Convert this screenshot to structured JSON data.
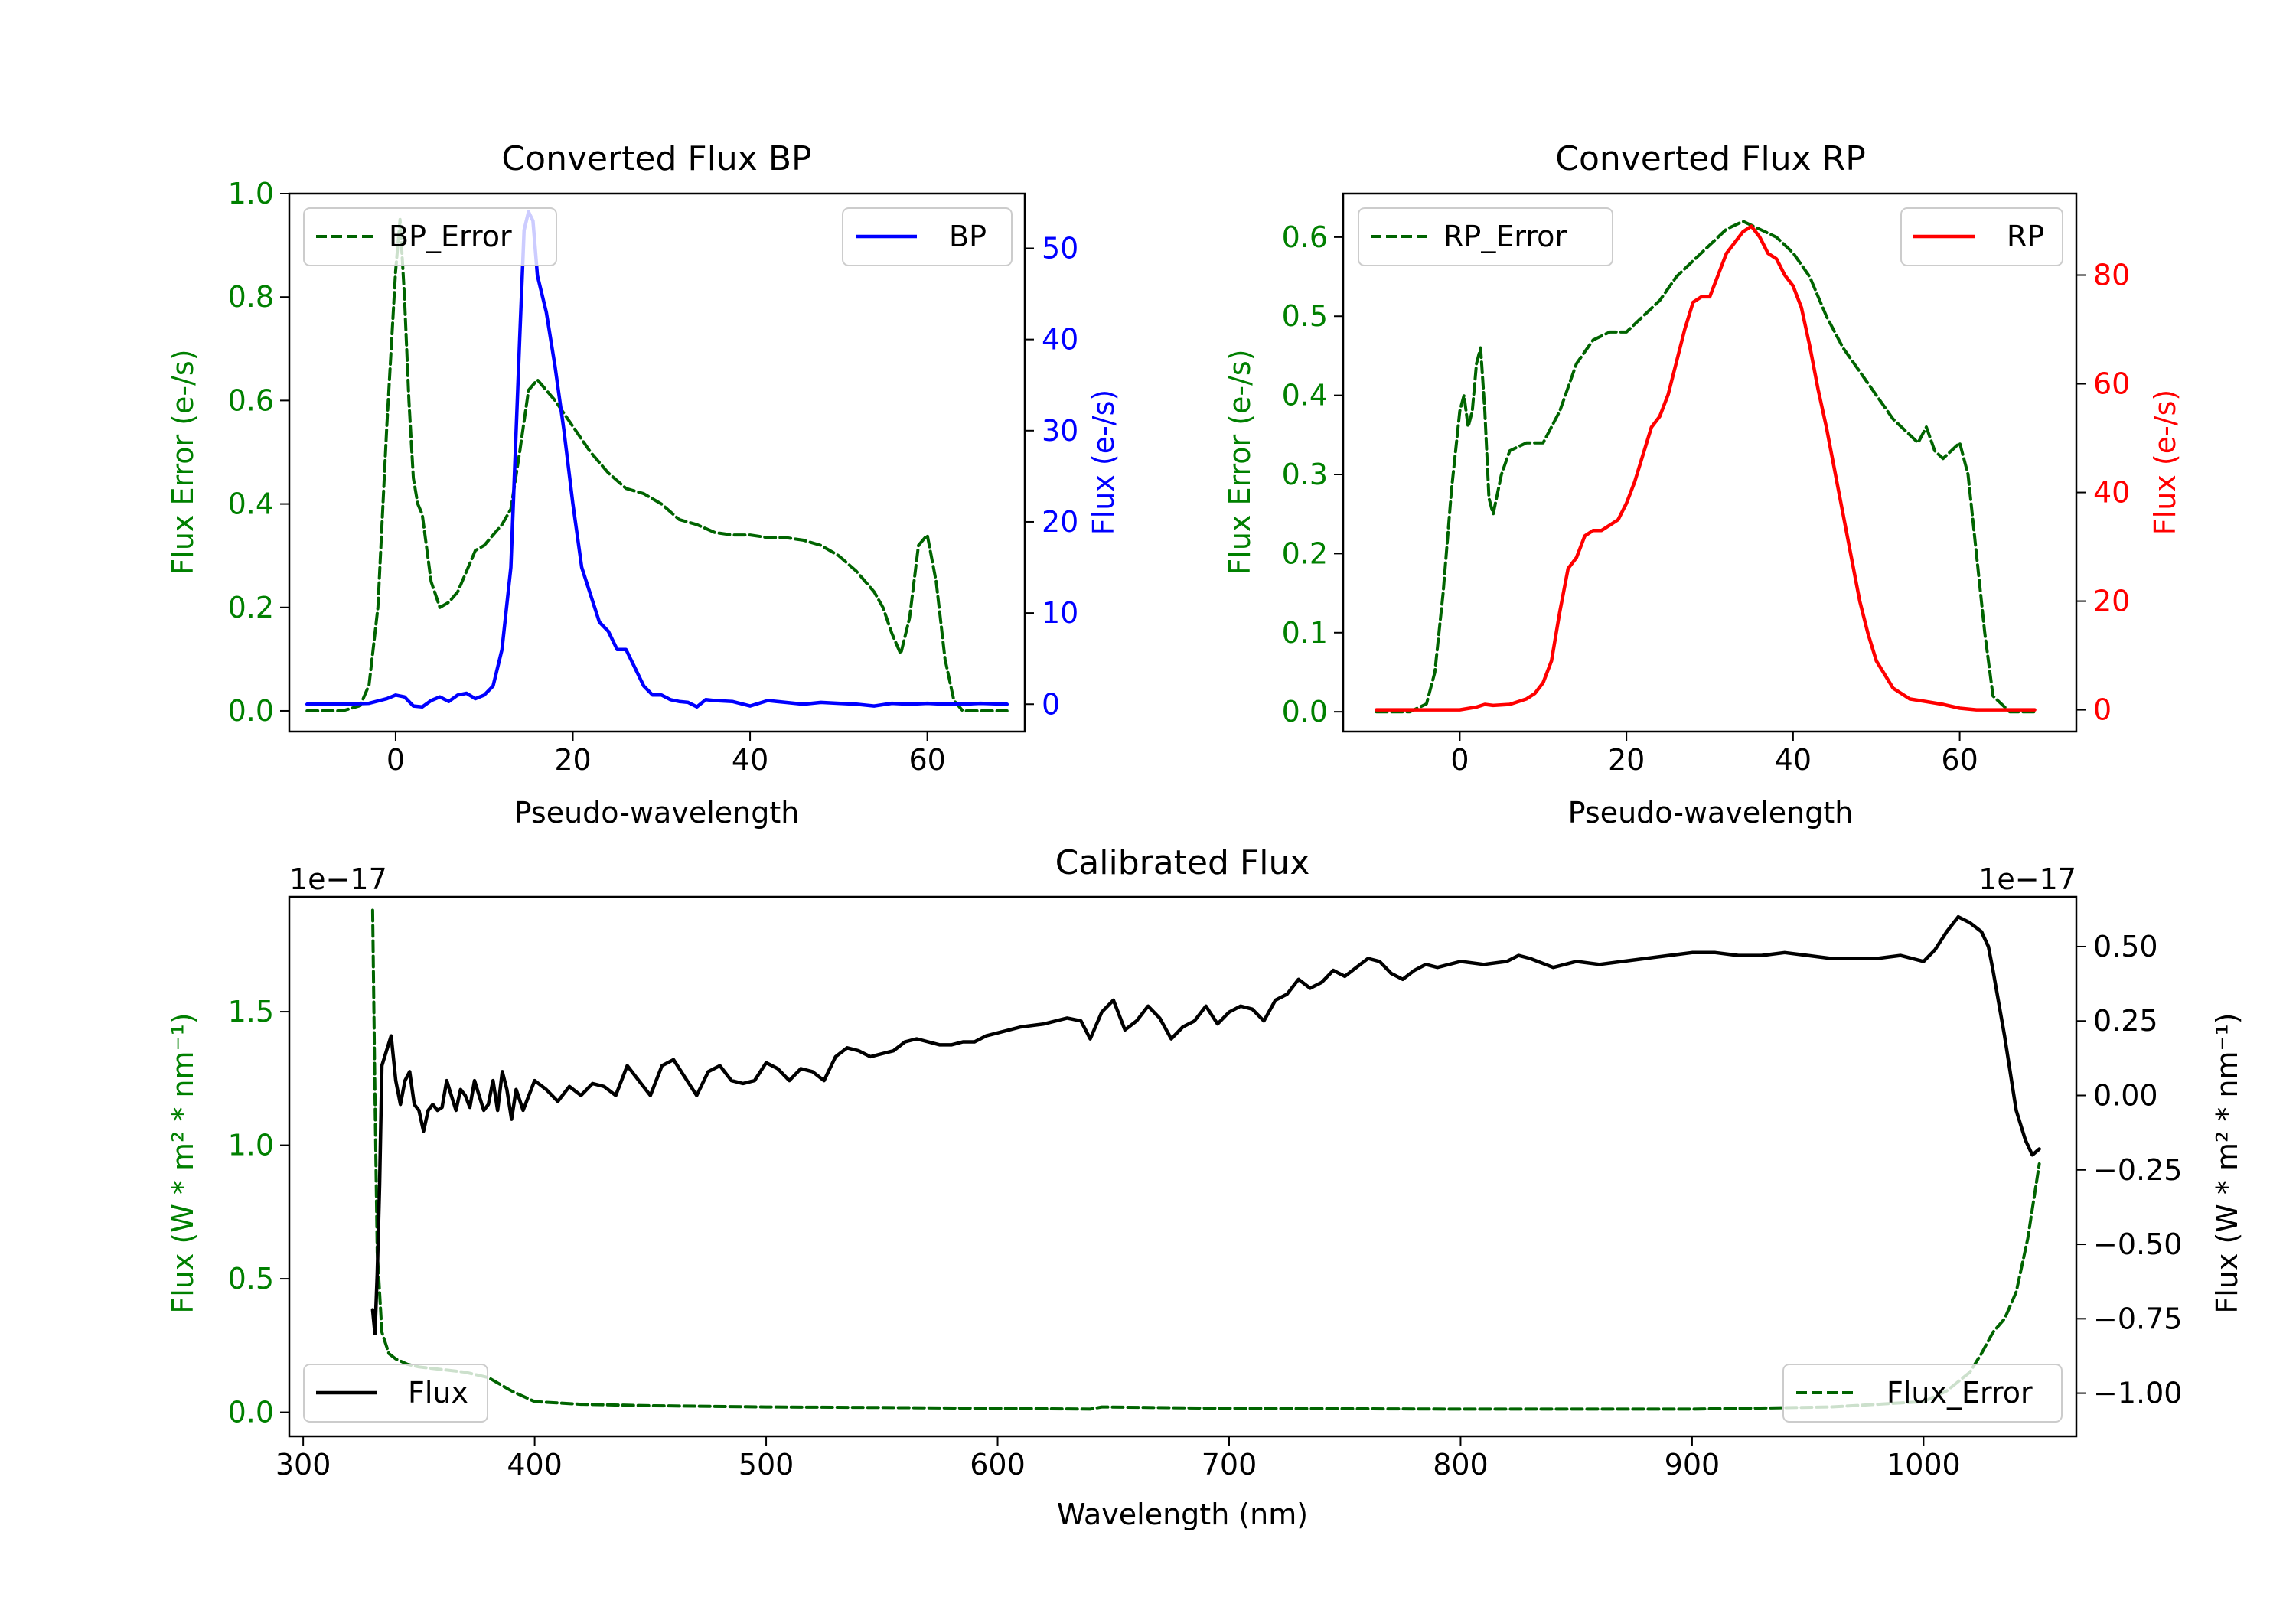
{
  "chart_data": [
    {
      "id": "bp",
      "type": "line",
      "title": "Converted Flux BP",
      "xlabel": "Pseudo-wavelength",
      "ylabel_left": "Flux Error (e-/s)",
      "ylabel_right": "Flux (e-/s)",
      "xlim": [
        -12,
        71
      ],
      "ylim_left": [
        -0.04,
        1.0
      ],
      "ylim_right": [
        -3,
        56
      ],
      "xticks": [
        0,
        20,
        40,
        60
      ],
      "xtick_labels": [
        "0",
        "20",
        "40",
        "60"
      ],
      "yticks_left": [
        0.0,
        0.2,
        0.4,
        0.6,
        0.8,
        1.0
      ],
      "ytick_labels_left": [
        "0.0",
        "0.2",
        "0.4",
        "0.6",
        "0.8",
        "1.0"
      ],
      "yticks_right": [
        0,
        10,
        20,
        30,
        40,
        50
      ],
      "ytick_labels_right": [
        "0",
        "10",
        "20",
        "30",
        "40",
        "50"
      ],
      "legend_left": {
        "label": "BP_Error",
        "position": "upper-left"
      },
      "legend_right": {
        "label": "BP",
        "position": "upper-right"
      },
      "colors": {
        "left_axis": "#008000",
        "right_axis": "#0000ff",
        "error_line": "#006400",
        "flux_line": "#0000ff"
      },
      "series": [
        {
          "name": "BP_Error",
          "axis": "left",
          "style": "dashed",
          "x": [
            -10,
            -8,
            -6,
            -4,
            -3,
            -2,
            -1,
            0,
            0.5,
            1,
            1.5,
            2,
            2.5,
            3,
            4,
            5,
            6,
            7,
            8,
            9,
            10,
            11,
            12,
            13,
            14,
            15,
            16,
            17,
            18,
            20,
            22,
            24,
            26,
            28,
            30,
            32,
            34,
            36,
            38,
            40,
            42,
            44,
            46,
            48,
            50,
            52,
            54,
            55,
            56,
            57,
            58,
            59,
            60,
            61,
            62,
            63,
            64,
            66,
            69
          ],
          "y": [
            0.0,
            0.0,
            0.0,
            0.01,
            0.05,
            0.2,
            0.55,
            0.85,
            0.95,
            0.8,
            0.6,
            0.45,
            0.4,
            0.38,
            0.25,
            0.2,
            0.21,
            0.23,
            0.27,
            0.31,
            0.32,
            0.34,
            0.36,
            0.39,
            0.5,
            0.62,
            0.64,
            0.62,
            0.6,
            0.55,
            0.5,
            0.46,
            0.43,
            0.42,
            0.4,
            0.37,
            0.36,
            0.345,
            0.34,
            0.34,
            0.335,
            0.335,
            0.33,
            0.32,
            0.3,
            0.27,
            0.23,
            0.2,
            0.15,
            0.11,
            0.18,
            0.32,
            0.34,
            0.25,
            0.1,
            0.02,
            0.0,
            0.0,
            0.0
          ]
        },
        {
          "name": "BP",
          "axis": "right",
          "style": "solid",
          "x": [
            -10,
            -6,
            -3,
            -1,
            0,
            1,
            2,
            3,
            4,
            5,
            6,
            7,
            8,
            9,
            10,
            11,
            12,
            13,
            14,
            14.5,
            15,
            15.5,
            16,
            17,
            18,
            19,
            20,
            21,
            22,
            23,
            24,
            25,
            26,
            27,
            28,
            29,
            30,
            31,
            32,
            33,
            34,
            35,
            36,
            38,
            40,
            42,
            44,
            46,
            48,
            50,
            52,
            54,
            56,
            58,
            60,
            62,
            64,
            66,
            69
          ],
          "y": [
            0,
            0,
            0.1,
            0.6,
            1.0,
            0.8,
            -0.2,
            -0.3,
            0.4,
            0.8,
            0.3,
            1.0,
            1.2,
            0.6,
            1.0,
            2.0,
            6.0,
            15.0,
            40.0,
            52.0,
            54.0,
            53.0,
            47.0,
            43.0,
            37.0,
            30.0,
            22.0,
            15.0,
            12.0,
            9.0,
            8.0,
            6.0,
            6.0,
            4.0,
            2.0,
            1.0,
            1.0,
            0.5,
            0.3,
            0.2,
            -0.3,
            0.5,
            0.4,
            0.3,
            -0.2,
            0.4,
            0.2,
            0.0,
            0.2,
            0.1,
            0.0,
            -0.2,
            0.1,
            0.0,
            0.1,
            0.0,
            0.0,
            0.1,
            0.0
          ]
        }
      ]
    },
    {
      "id": "rp",
      "type": "line",
      "title": "Converted Flux RP",
      "xlabel": "Pseudo-wavelength",
      "ylabel_left": "Flux Error (e-/s)",
      "ylabel_right": "Flux (e-/s)",
      "xlim": [
        -14,
        74
      ],
      "ylim_left": [
        -0.025,
        0.655
      ],
      "ylim_right": [
        -4,
        95
      ],
      "xticks": [
        0,
        20,
        40,
        60
      ],
      "xtick_labels": [
        "0",
        "20",
        "40",
        "60"
      ],
      "yticks_left": [
        0.0,
        0.1,
        0.2,
        0.3,
        0.4,
        0.5,
        0.6
      ],
      "ytick_labels_left": [
        "0.0",
        "0.1",
        "0.2",
        "0.3",
        "0.4",
        "0.5",
        "0.6"
      ],
      "yticks_right": [
        0,
        20,
        40,
        60,
        80
      ],
      "ytick_labels_right": [
        "0",
        "20",
        "40",
        "60",
        "80"
      ],
      "legend_left": {
        "label": "RP_Error",
        "position": "upper-left"
      },
      "legend_right": {
        "label": "RP",
        "position": "upper-right"
      },
      "colors": {
        "left_axis": "#008000",
        "right_axis": "#ff0000",
        "error_line": "#006400",
        "flux_line": "#ff0000"
      },
      "series": [
        {
          "name": "RP_Error",
          "axis": "left",
          "style": "dashed",
          "x": [
            -10,
            -6,
            -4,
            -3,
            -2,
            -1,
            0,
            0.5,
            1,
            1.5,
            2,
            2.5,
            3,
            3.5,
            4,
            5,
            6,
            8,
            10,
            12,
            14,
            16,
            18,
            20,
            22,
            24,
            26,
            28,
            30,
            32,
            34,
            36,
            38,
            40,
            42,
            44,
            46,
            48,
            50,
            52,
            54,
            55,
            56,
            57,
            58,
            59,
            60,
            61,
            62,
            63,
            64,
            66,
            69
          ],
          "y": [
            0.0,
            0.0,
            0.01,
            0.05,
            0.15,
            0.28,
            0.38,
            0.4,
            0.36,
            0.38,
            0.44,
            0.46,
            0.38,
            0.27,
            0.25,
            0.3,
            0.33,
            0.34,
            0.34,
            0.38,
            0.44,
            0.47,
            0.48,
            0.48,
            0.5,
            0.52,
            0.55,
            0.57,
            0.59,
            0.61,
            0.62,
            0.61,
            0.6,
            0.58,
            0.55,
            0.5,
            0.46,
            0.43,
            0.4,
            0.37,
            0.35,
            0.34,
            0.36,
            0.33,
            0.32,
            0.33,
            0.34,
            0.3,
            0.2,
            0.1,
            0.02,
            0.0,
            0.0
          ]
        },
        {
          "name": "RP",
          "axis": "right",
          "style": "solid",
          "x": [
            -10,
            -6,
            -3,
            0,
            2,
            3,
            4,
            6,
            8,
            9,
            10,
            11,
            12,
            13,
            14,
            15,
            16,
            17,
            18,
            19,
            20,
            21,
            22,
            23,
            24,
            25,
            26,
            27,
            28,
            29,
            30,
            31,
            32,
            33,
            34,
            35,
            36,
            37,
            38,
            39,
            40,
            41,
            42,
            43,
            44,
            45,
            46,
            47,
            48,
            49,
            50,
            52,
            54,
            56,
            58,
            60,
            62,
            64,
            66,
            69
          ],
          "y": [
            0.0,
            0.0,
            0.0,
            0.0,
            0.5,
            1.0,
            0.8,
            1.0,
            2.0,
            3.0,
            5.0,
            9.0,
            18.0,
            26.0,
            28.0,
            32.0,
            33.0,
            33.0,
            34.0,
            35.0,
            38.0,
            42.0,
            47.0,
            52.0,
            54.0,
            58.0,
            64.0,
            70.0,
            75.0,
            76.0,
            76.0,
            80.0,
            84.0,
            86.0,
            88.0,
            89.0,
            87.0,
            84.0,
            83.0,
            80.0,
            78.0,
            74.0,
            67.0,
            59.0,
            52.0,
            44.0,
            36.0,
            28.0,
            20.0,
            14.0,
            9.0,
            4.0,
            2.0,
            1.5,
            1.0,
            0.3,
            0.0,
            0.0,
            0.0,
            0.0
          ]
        }
      ]
    },
    {
      "id": "calibrated",
      "type": "line",
      "title": "Calibrated Flux",
      "xlabel": "Wavelength (nm)",
      "ylabel_left": "Flux (W * m² * nm⁻¹)",
      "ylabel_right": "Flux (W * m² * nm⁻¹)",
      "offset_left": "1e−17",
      "offset_right": "1e−17",
      "xlim": [
        294,
        1066
      ],
      "ylim_left": [
        -0.09,
        1.93
      ],
      "ylim_right": [
        -1.145,
        0.667
      ],
      "xticks": [
        300,
        400,
        500,
        600,
        700,
        800,
        900,
        1000
      ],
      "xtick_labels": [
        "300",
        "400",
        "500",
        "600",
        "700",
        "800",
        "900",
        "1000"
      ],
      "yticks_left": [
        0.0,
        0.5,
        1.0,
        1.5
      ],
      "ytick_labels_left": [
        "0.0",
        "0.5",
        "1.0",
        "1.5"
      ],
      "yticks_right": [
        -1.0,
        -0.75,
        -0.5,
        -0.25,
        0.0,
        0.25,
        0.5
      ],
      "ytick_labels_right": [
        "−1.00",
        "−0.75",
        "−0.50",
        "−0.25",
        "0.00",
        "0.25",
        "0.50"
      ],
      "legend_left": {
        "label": "Flux",
        "position": "lower-left"
      },
      "legend_right": {
        "label": "Flux_Error",
        "position": "lower-right"
      },
      "colors": {
        "left_axis": "#008000",
        "right_axis": "#000000",
        "error_line": "#006400",
        "flux_line": "#000000"
      },
      "series": [
        {
          "name": "Flux_Error",
          "axis": "left",
          "style": "dashed",
          "x": [
            330,
            331,
            332,
            334,
            337,
            340,
            345,
            350,
            360,
            370,
            380,
            390,
            400,
            420,
            450,
            500,
            550,
            600,
            640,
            645,
            700,
            800,
            900,
            960,
            1000,
            1010,
            1020,
            1025,
            1030,
            1035,
            1040,
            1045,
            1050
          ],
          "y": [
            1.88,
            1.2,
            0.6,
            0.3,
            0.22,
            0.2,
            0.18,
            0.17,
            0.16,
            0.15,
            0.13,
            0.08,
            0.04,
            0.03,
            0.025,
            0.02,
            0.018,
            0.015,
            0.012,
            0.02,
            0.015,
            0.012,
            0.012,
            0.02,
            0.04,
            0.08,
            0.15,
            0.22,
            0.3,
            0.35,
            0.45,
            0.65,
            0.93
          ]
        },
        {
          "name": "Flux",
          "axis": "right",
          "style": "solid",
          "x": [
            330,
            331,
            332,
            333,
            334,
            336,
            338,
            340,
            342,
            344,
            346,
            348,
            350,
            352,
            354,
            356,
            358,
            360,
            362,
            364,
            366,
            368,
            370,
            372,
            374,
            376,
            378,
            380,
            382,
            384,
            386,
            388,
            390,
            392,
            395,
            400,
            405,
            410,
            415,
            420,
            425,
            430,
            435,
            440,
            445,
            450,
            455,
            460,
            465,
            470,
            475,
            480,
            485,
            490,
            495,
            500,
            505,
            510,
            515,
            520,
            525,
            530,
            535,
            540,
            545,
            550,
            555,
            560,
            565,
            570,
            575,
            580,
            585,
            590,
            595,
            600,
            610,
            620,
            630,
            636,
            640,
            645,
            650,
            655,
            660,
            665,
            670,
            675,
            680,
            685,
            690,
            695,
            700,
            705,
            710,
            715,
            720,
            725,
            730,
            735,
            740,
            745,
            750,
            755,
            760,
            765,
            770,
            775,
            780,
            785,
            790,
            795,
            800,
            810,
            820,
            825,
            830,
            840,
            850,
            860,
            870,
            880,
            890,
            900,
            910,
            920,
            930,
            940,
            950,
            960,
            970,
            980,
            990,
            1000,
            1005,
            1010,
            1015,
            1020,
            1025,
            1028,
            1030,
            1035,
            1040,
            1044,
            1047,
            1050
          ],
          "y": [
            -0.72,
            -0.8,
            -0.6,
            -0.3,
            0.1,
            0.15,
            0.2,
            0.05,
            -0.03,
            0.05,
            0.08,
            -0.03,
            -0.05,
            -0.12,
            -0.05,
            -0.03,
            -0.05,
            -0.04,
            0.05,
            0.0,
            -0.05,
            0.02,
            0.0,
            -0.04,
            0.05,
            0.0,
            -0.05,
            -0.03,
            0.05,
            -0.05,
            0.08,
            0.02,
            -0.08,
            0.02,
            -0.05,
            0.05,
            0.02,
            -0.02,
            0.03,
            0.0,
            0.04,
            0.03,
            0.0,
            0.1,
            0.05,
            0.0,
            0.1,
            0.12,
            0.06,
            0.0,
            0.08,
            0.1,
            0.05,
            0.04,
            0.05,
            0.11,
            0.09,
            0.05,
            0.09,
            0.08,
            0.05,
            0.13,
            0.16,
            0.15,
            0.13,
            0.14,
            0.15,
            0.18,
            0.19,
            0.18,
            0.17,
            0.17,
            0.18,
            0.18,
            0.2,
            0.21,
            0.23,
            0.24,
            0.26,
            0.25,
            0.19,
            0.28,
            0.32,
            0.22,
            0.25,
            0.3,
            0.26,
            0.19,
            0.23,
            0.25,
            0.3,
            0.24,
            0.28,
            0.3,
            0.29,
            0.25,
            0.32,
            0.34,
            0.39,
            0.36,
            0.38,
            0.42,
            0.4,
            0.43,
            0.46,
            0.45,
            0.41,
            0.39,
            0.42,
            0.44,
            0.43,
            0.44,
            0.45,
            0.44,
            0.45,
            0.47,
            0.46,
            0.43,
            0.45,
            0.44,
            0.45,
            0.46,
            0.47,
            0.48,
            0.48,
            0.47,
            0.47,
            0.48,
            0.47,
            0.46,
            0.46,
            0.46,
            0.47,
            0.45,
            0.49,
            0.55,
            0.6,
            0.58,
            0.55,
            0.5,
            0.42,
            0.2,
            -0.05,
            -0.15,
            -0.2,
            -0.18
          ]
        }
      ]
    }
  ]
}
